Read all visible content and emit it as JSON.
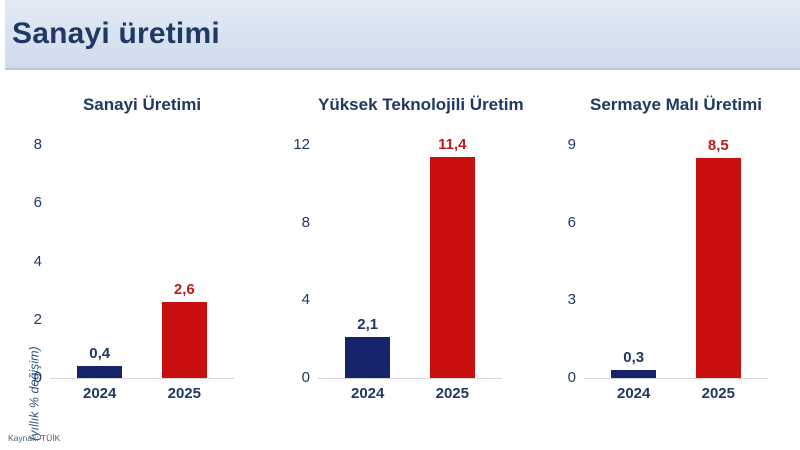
{
  "header": {
    "title": "Sanayi üretimi"
  },
  "footer": {
    "source": "Kaynak: TÜİK"
  },
  "colors": {
    "header_bg": "#d8e2f0",
    "navy_text": "#1f3864",
    "bar_2024": "#16256b",
    "bar_2025": "#c90e0e",
    "value_label_2024": "#1f3864",
    "value_label_2025": "#be1c1c",
    "baseline": "#d6d6d6"
  },
  "chart_data": {
    "type": "bar",
    "axis_unit_label": "(yıllık % değişim)",
    "categories": [
      "2024",
      "2025"
    ],
    "series_colors": {
      "2024": "#16256b",
      "2025": "#c90e0e"
    },
    "value_label_colors": {
      "2024": "#1f3864",
      "2025": "#be1c1c"
    },
    "legend": "none",
    "grid": false,
    "charts": [
      {
        "title": "Sanayi Üretimi",
        "categories": [
          "2024",
          "2025"
        ],
        "values": [
          0.4,
          2.6
        ],
        "value_labels": [
          "0,4",
          "2,6"
        ],
        "yticks": [
          0,
          2,
          4,
          6,
          8
        ],
        "ylim": [
          0,
          8
        ]
      },
      {
        "title": "Yüksek Teknolojili Üretim",
        "categories": [
          "2024",
          "2025"
        ],
        "values": [
          2.1,
          11.4
        ],
        "value_labels": [
          "2,1",
          "11,4"
        ],
        "yticks": [
          0,
          4,
          8,
          12
        ],
        "ylim": [
          0,
          12
        ]
      },
      {
        "title": "Sermaye Malı Üretimi",
        "categories": [
          "2024",
          "2025"
        ],
        "values": [
          0.3,
          8.5
        ],
        "value_labels": [
          "0,3",
          "8,5"
        ],
        "yticks": [
          0,
          3,
          6,
          9
        ],
        "ylim": [
          0,
          9
        ]
      }
    ]
  }
}
